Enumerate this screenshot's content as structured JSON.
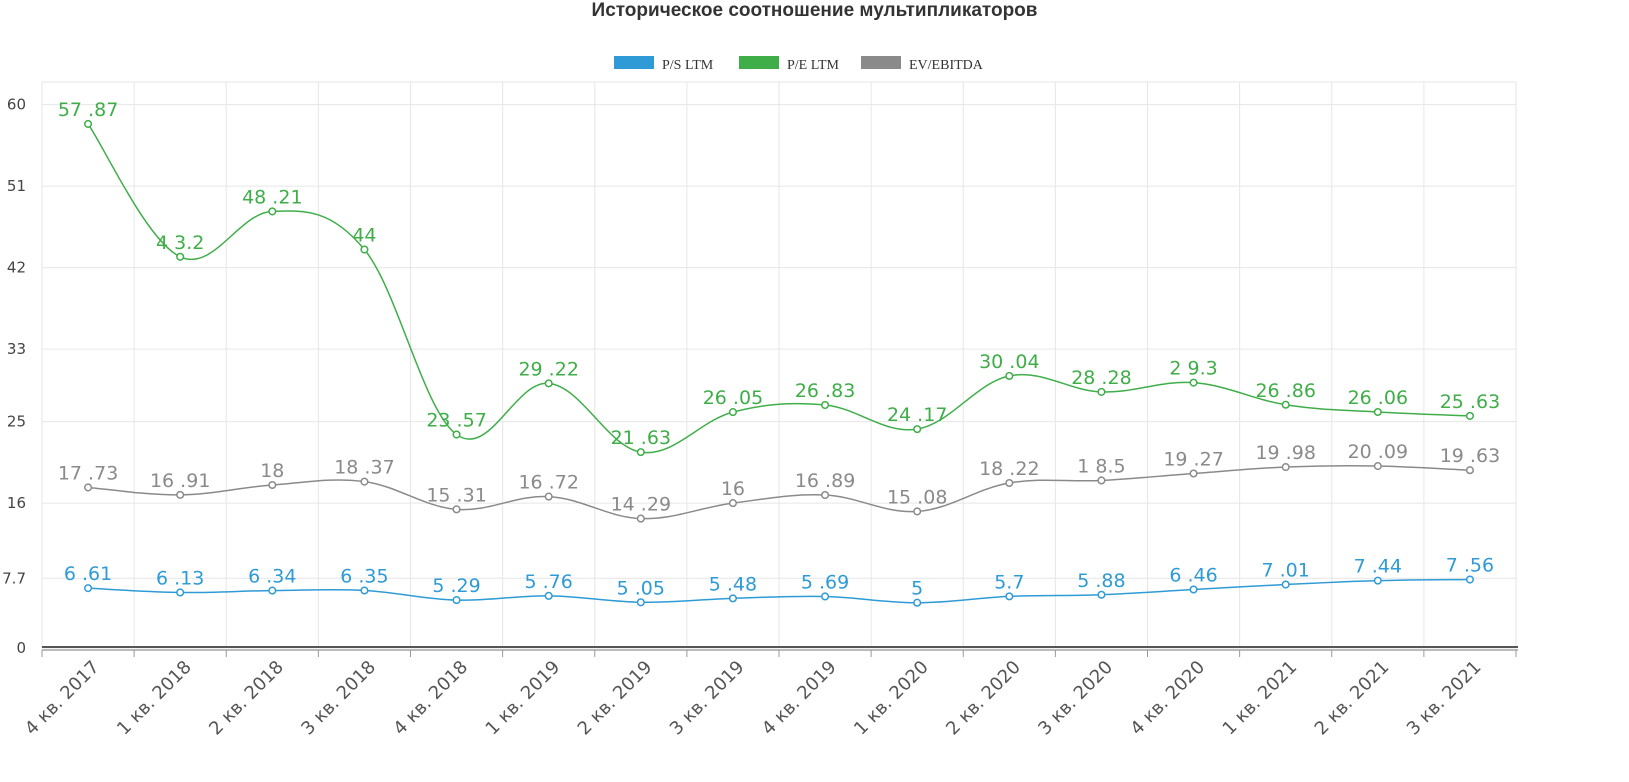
{
  "chart_data": {
    "type": "line",
    "title": "Историческое соотношение мультипликаторов",
    "categories": [
      "4 кв. 2017",
      "1 кв. 2018",
      "2 кв. 2018",
      "3 кв. 2018",
      "4 кв. 2018",
      "1 кв. 2019",
      "2 кв. 2019",
      "3 кв. 2019",
      "4 кв. 2019",
      "1 кв. 2020",
      "2 кв. 2020",
      "3 кв. 2020",
      "4 кв. 2020",
      "1 кв. 2021",
      "2 кв. 2021",
      "3 кв. 2021"
    ],
    "y_ticks": [
      "0",
      "7.7",
      "16",
      "25",
      "33",
      "42",
      "51",
      "60"
    ],
    "ylim": [
      0,
      62.5
    ],
    "grid": true,
    "legend_position": "top-center",
    "series": [
      {
        "name": "P/S LTM",
        "color": "#2e9bd6",
        "values": [
          6.61,
          6.13,
          6.34,
          6.35,
          5.29,
          5.76,
          5.05,
          5.48,
          5.69,
          5,
          5.7,
          5.88,
          6.46,
          7.01,
          7.44,
          7.56
        ],
        "labels": [
          "6 .61",
          "6 .13",
          "6 .34",
          "6 .35",
          "5 .29",
          "5 .76",
          "5 .05",
          "5 .48",
          "5 .69",
          "5",
          "5.7",
          "5 .88",
          "6 .46",
          "7 .01",
          "7 .44",
          "7 .56"
        ]
      },
      {
        "name": "P/E LTM",
        "color": "#3fae49",
        "values": [
          57.87,
          43.2,
          48.21,
          44,
          23.57,
          29.22,
          21.63,
          26.05,
          26.83,
          24.17,
          30.04,
          28.28,
          29.3,
          26.86,
          26.06,
          25.63
        ],
        "labels": [
          "57 .87",
          "4 3.2",
          "48 .21",
          "44",
          "23 .57",
          "29 .22",
          "21 .63",
          "26 .05",
          "26 .83",
          "24 .17",
          "30 .04",
          "28 .28",
          "2 9.3",
          "26 .86",
          "26 .06",
          "25 .63"
        ]
      },
      {
        "name": "EV/EBITDA",
        "color": "#8a8a8a",
        "values": [
          17.73,
          16.91,
          18,
          18.37,
          15.31,
          16.72,
          14.29,
          16,
          16.89,
          15.08,
          18.22,
          18.5,
          19.27,
          19.98,
          20.09,
          19.63
        ],
        "labels": [
          "17 .73",
          "16 .91",
          "18",
          "18 .37",
          "15 .31",
          "16 .72",
          "14 .29",
          "16",
          "16 .89",
          "15 .08",
          "18 .22",
          "1 8.5",
          "19 .27",
          "19 .98",
          "20 .09",
          "19 .63"
        ]
      }
    ]
  }
}
